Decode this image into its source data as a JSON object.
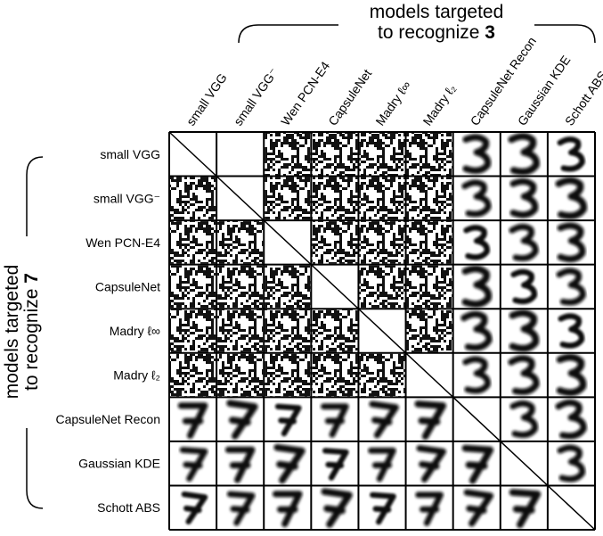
{
  "top_label": {
    "line1": "models targeted",
    "line2": "to recognize",
    "emphasis": "3"
  },
  "left_label": {
    "line1": "models targeted",
    "line2": "to recognize",
    "emphasis": "7"
  },
  "columns": [
    "small VGG",
    "small VGG⁻",
    "Wen PCN-E4",
    "CapsuleNet",
    "Madry ℓ∞",
    "Madry ℓ₂",
    "CapsuleNet Recon",
    "Gaussian KDE",
    "Schott ABS"
  ],
  "rows": [
    "small VGG",
    "small VGG⁻",
    "Wen PCN-E4",
    "CapsuleNet",
    "Madry ℓ∞",
    "Madry ℓ₂",
    "CapsuleNet Recon",
    "Gaussian KDE",
    "Schott ABS"
  ]
}
